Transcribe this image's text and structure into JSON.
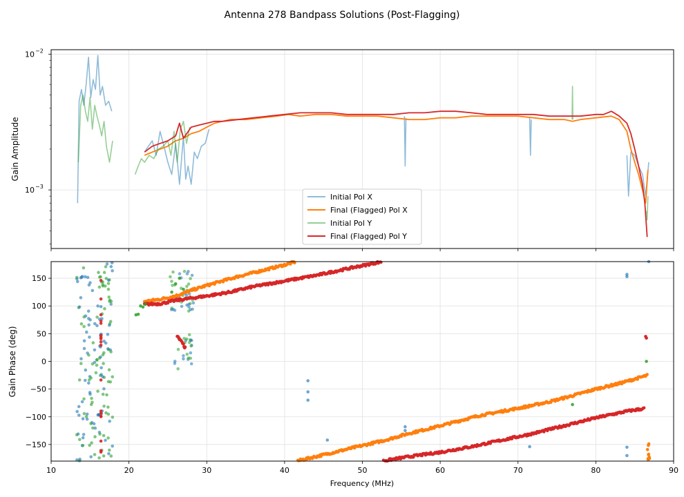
{
  "figure_title": "Antenna 278 Bandpass Solutions (Post-Flagging)",
  "colors": {
    "initial_x": "#1f77b4",
    "final_x": "#ff7f0e",
    "initial_y": "#2ca02c",
    "final_y": "#d62728"
  },
  "chart_data": [
    {
      "type": "line",
      "panel": "amplitude",
      "title": "Antenna 278 Bandpass Solutions (Post-Flagging)",
      "xlabel": "",
      "ylabel": "Gain Amplitude",
      "yscale": "log",
      "xlim": [
        10,
        90
      ],
      "ylim": [
        0.00037,
        0.0108
      ],
      "xticks": [
        10,
        20,
        30,
        40,
        50,
        60,
        70,
        80,
        90
      ],
      "yticks": [
        {
          "value": 0.001,
          "base": "10",
          "exp": "−3"
        },
        {
          "value": 0.01,
          "base": "10",
          "exp": "−2"
        }
      ],
      "grid": true,
      "legend": {
        "location": "lower-center",
        "entries": [
          "Initial Pol X",
          "Final (Flagged) Pol X",
          "Initial Pol Y",
          "Final (Flagged) Pol Y"
        ]
      },
      "series": [
        {
          "name": "Initial Pol X",
          "color": "#1f77b4",
          "x": [
            13.4,
            13.6,
            13.9,
            14.2,
            14.5,
            14.8,
            15.1,
            15.4,
            15.7,
            16.0,
            16.3,
            16.6,
            17.0,
            17.4,
            17.8,
            null,
            22.0,
            22.5,
            23.0,
            23.5,
            24.0,
            24.5,
            25.0,
            25.5,
            26.0,
            26.5,
            27.0,
            27.3,
            27.6,
            28.0,
            28.4,
            28.8,
            29.3,
            29.8,
            30.3,
            null,
            55.4,
            55.5,
            55.6,
            null,
            71.5,
            71.6,
            71.7,
            null,
            84.0,
            84.2,
            84.5,
            85.0,
            85.5,
            86.0,
            86.4,
            86.8
          ],
          "y": [
            0.0008,
            0.0045,
            0.0055,
            0.0042,
            0.006,
            0.0095,
            0.0048,
            0.0065,
            0.0055,
            0.0098,
            0.005,
            0.0058,
            0.0042,
            0.0045,
            0.0038,
            null,
            0.0019,
            0.0021,
            0.0023,
            0.0018,
            0.0027,
            0.0021,
            0.0016,
            0.0013,
            0.0022,
            0.0011,
            0.0025,
            0.0012,
            0.0015,
            0.0011,
            0.0019,
            0.0017,
            0.0021,
            0.0022,
            0.0028,
            null,
            0.0035,
            0.0015,
            0.0034,
            null,
            0.0034,
            0.0018,
            0.0033,
            null,
            0.0018,
            0.0009,
            0.0019,
            0.0018,
            0.0015,
            0.0013,
            0.0009,
            0.0016
          ]
        },
        {
          "name": "Final (Flagged) Pol X",
          "color": "#ff7f0e",
          "x": [
            22.0,
            23.0,
            24.0,
            25.0,
            26.0,
            27.0,
            28.0,
            29.0,
            30.0,
            31.0,
            32.0,
            33.0,
            35.0,
            37.0,
            39.0,
            40.5,
            42.0,
            44.0,
            46.0,
            48.0,
            50.0,
            52.0,
            54.0,
            56.0,
            58.0,
            60.0,
            62.0,
            64.0,
            66.0,
            68.0,
            70.0,
            72.0,
            74.0,
            76.0,
            77.0,
            78.0,
            80.0,
            82.0,
            83.0,
            84.0,
            84.5,
            85.0,
            85.5,
            86.0,
            86.4,
            86.7
          ],
          "y": [
            0.0018,
            0.0019,
            0.002,
            0.0021,
            0.0023,
            0.0024,
            0.0026,
            0.0027,
            0.0029,
            0.0031,
            0.0032,
            0.0033,
            0.0033,
            0.0034,
            0.0035,
            0.0036,
            0.0035,
            0.0036,
            0.0036,
            0.0035,
            0.0035,
            0.0035,
            0.0034,
            0.0033,
            0.0033,
            0.0034,
            0.0034,
            0.0035,
            0.0035,
            0.0035,
            0.0035,
            0.0034,
            0.0033,
            0.0033,
            0.0032,
            0.0033,
            0.0034,
            0.0035,
            0.0033,
            0.0027,
            0.002,
            0.0016,
            0.0013,
            0.001,
            0.0008,
            0.0014
          ]
        },
        {
          "name": "Initial Pol Y",
          "color": "#2ca02c",
          "x": [
            13.5,
            13.8,
            14.1,
            14.4,
            14.7,
            15.0,
            15.3,
            15.6,
            15.9,
            16.2,
            16.5,
            16.8,
            17.1,
            17.5,
            17.9,
            null,
            20.8,
            21.2,
            21.6,
            22.0,
            22.6,
            23.2,
            23.8,
            24.4,
            25.0,
            25.4,
            25.8,
            26.2,
            26.6,
            27.0,
            27.4,
            27.8,
            null,
            76.95,
            77.0,
            77.05,
            null,
            86.5,
            86.6,
            86.7
          ],
          "y": [
            0.0016,
            0.0042,
            0.005,
            0.0038,
            0.0032,
            0.0048,
            0.0028,
            0.0042,
            0.0035,
            0.003,
            0.0025,
            0.0032,
            0.0021,
            0.0016,
            0.0023,
            null,
            0.0013,
            0.0015,
            0.0017,
            0.0016,
            0.0018,
            0.0017,
            0.002,
            0.0021,
            0.0023,
            0.0018,
            0.0027,
            0.0016,
            0.0028,
            0.0032,
            0.0022,
            0.0029,
            null,
            0.0033,
            0.0058,
            0.0033,
            null,
            0.0007,
            0.0006,
            0.0009
          ]
        },
        {
          "name": "Final (Flagged) Pol Y",
          "color": "#d62728",
          "x": [
            22.0,
            23.0,
            24.0,
            25.0,
            26.0,
            26.5,
            27.0,
            28.0,
            29.0,
            30.0,
            31.0,
            32.0,
            34.0,
            36.0,
            38.0,
            40.0,
            42.0,
            44.0,
            46.0,
            48.0,
            50.0,
            52.0,
            54.0,
            56.0,
            58.0,
            60.0,
            62.0,
            64.0,
            66.0,
            68.0,
            70.0,
            72.0,
            74.0,
            76.0,
            78.0,
            80.0,
            81.0,
            82.0,
            83.0,
            84.0,
            84.5,
            85.0,
            85.5,
            86.0,
            86.3,
            86.6
          ],
          "y": [
            0.0019,
            0.0021,
            0.0022,
            0.0023,
            0.0025,
            0.0031,
            0.0024,
            0.0029,
            0.003,
            0.0031,
            0.0032,
            0.0032,
            0.0033,
            0.0034,
            0.0035,
            0.0036,
            0.0037,
            0.0037,
            0.0037,
            0.0036,
            0.0036,
            0.0036,
            0.0036,
            0.0037,
            0.0037,
            0.0038,
            0.0038,
            0.0037,
            0.0036,
            0.0036,
            0.0036,
            0.0036,
            0.0035,
            0.0035,
            0.0035,
            0.0036,
            0.0036,
            0.0038,
            0.0035,
            0.0031,
            0.0026,
            0.002,
            0.0015,
            0.0011,
            0.0008,
            0.00045
          ]
        }
      ]
    },
    {
      "type": "scatter",
      "panel": "phase",
      "xlabel": "Frequency (MHz)",
      "ylabel": "Gain Phase (deg)",
      "xlim": [
        10,
        90
      ],
      "ylim": [
        -180,
        180
      ],
      "xticks": [
        10,
        20,
        30,
        40,
        50,
        60,
        70,
        80,
        90
      ],
      "yticks": [
        -150,
        -100,
        -50,
        0,
        50,
        100,
        150
      ],
      "grid": true,
      "series": [
        {
          "name": "Final (Flagged) Pol X",
          "color": "#ff7f0e",
          "segments": [
            {
              "x": [
                22.0,
                24.0,
                26.0,
                28.0,
                30.0,
                32.0,
                34.0,
                36.0,
                38.0,
                40.0,
                41.5
              ],
              "y": [
                108,
                112,
                118,
                128,
                137,
                145,
                153,
                160,
                167,
                174,
                180
              ]
            },
            {
              "x": [
                41.5,
                44.0,
                47.0,
                50.0,
                53.0,
                56.0,
                59.0,
                62.0,
                65.0,
                68.0,
                71.0,
                74.0,
                77.0,
                80.0,
                83.0,
                86.7
              ],
              "y": [
                -180,
                -172,
                -162,
                -152,
                -142,
                -130,
                -120,
                -109,
                -98,
                -90,
                -82,
                -73,
                -62,
                -50,
                -40,
                -25
              ]
            }
          ]
        },
        {
          "name": "Final (Flagged) Pol Y",
          "color": "#d62728",
          "segments": [
            {
              "x": [
                22.0,
                24.0,
                26.0,
                28.0,
                30.0,
                33.0,
                36.0,
                40.0,
                44.0,
                48.0,
                52.5
              ],
              "y": [
                103,
                104,
                110,
                114,
                118,
                125,
                135,
                145,
                155,
                167,
                180
              ]
            },
            {
              "x": [
                52.5,
                56.0,
                60.0,
                64.0,
                68.0,
                72.0,
                76.0,
                80.0,
                84.0,
                86.3
              ],
              "y": [
                -180,
                -172,
                -164,
                -154,
                -142,
                -130,
                -116,
                -102,
                -90,
                -85
              ]
            },
            {
              "x": [
                26.2,
                26.6,
                27.0,
                27.3
              ],
              "y": [
                45,
                38,
                30,
                22
              ]
            }
          ]
        },
        {
          "name": "Initial Pol X",
          "color": "#1f77b4",
          "points": [
            [
              43.0,
              -35
            ],
            [
              43.0,
              -55
            ],
            [
              43.0,
              -70
            ],
            [
              45.5,
              -142
            ],
            [
              55.5,
              -118
            ],
            [
              55.5,
              -125
            ],
            [
              71.5,
              -154
            ],
            [
              84.0,
              157
            ],
            [
              84.0,
              153
            ],
            [
              84.0,
              -155
            ],
            [
              84.0,
              -170
            ],
            [
              86.8,
              180
            ]
          ]
        },
        {
          "name": "Initial Pol Y",
          "color": "#2ca02c",
          "points": [
            [
              20.9,
              84
            ],
            [
              21.2,
              85
            ],
            [
              21.5,
              100
            ],
            [
              21.8,
              98
            ],
            [
              22.1,
              103
            ],
            [
              25.5,
              125
            ],
            [
              26.0,
              140
            ],
            [
              26.5,
              150
            ],
            [
              27.0,
              130
            ],
            [
              77.0,
              -78
            ],
            [
              86.5,
              0
            ]
          ]
        }
      ]
    }
  ]
}
